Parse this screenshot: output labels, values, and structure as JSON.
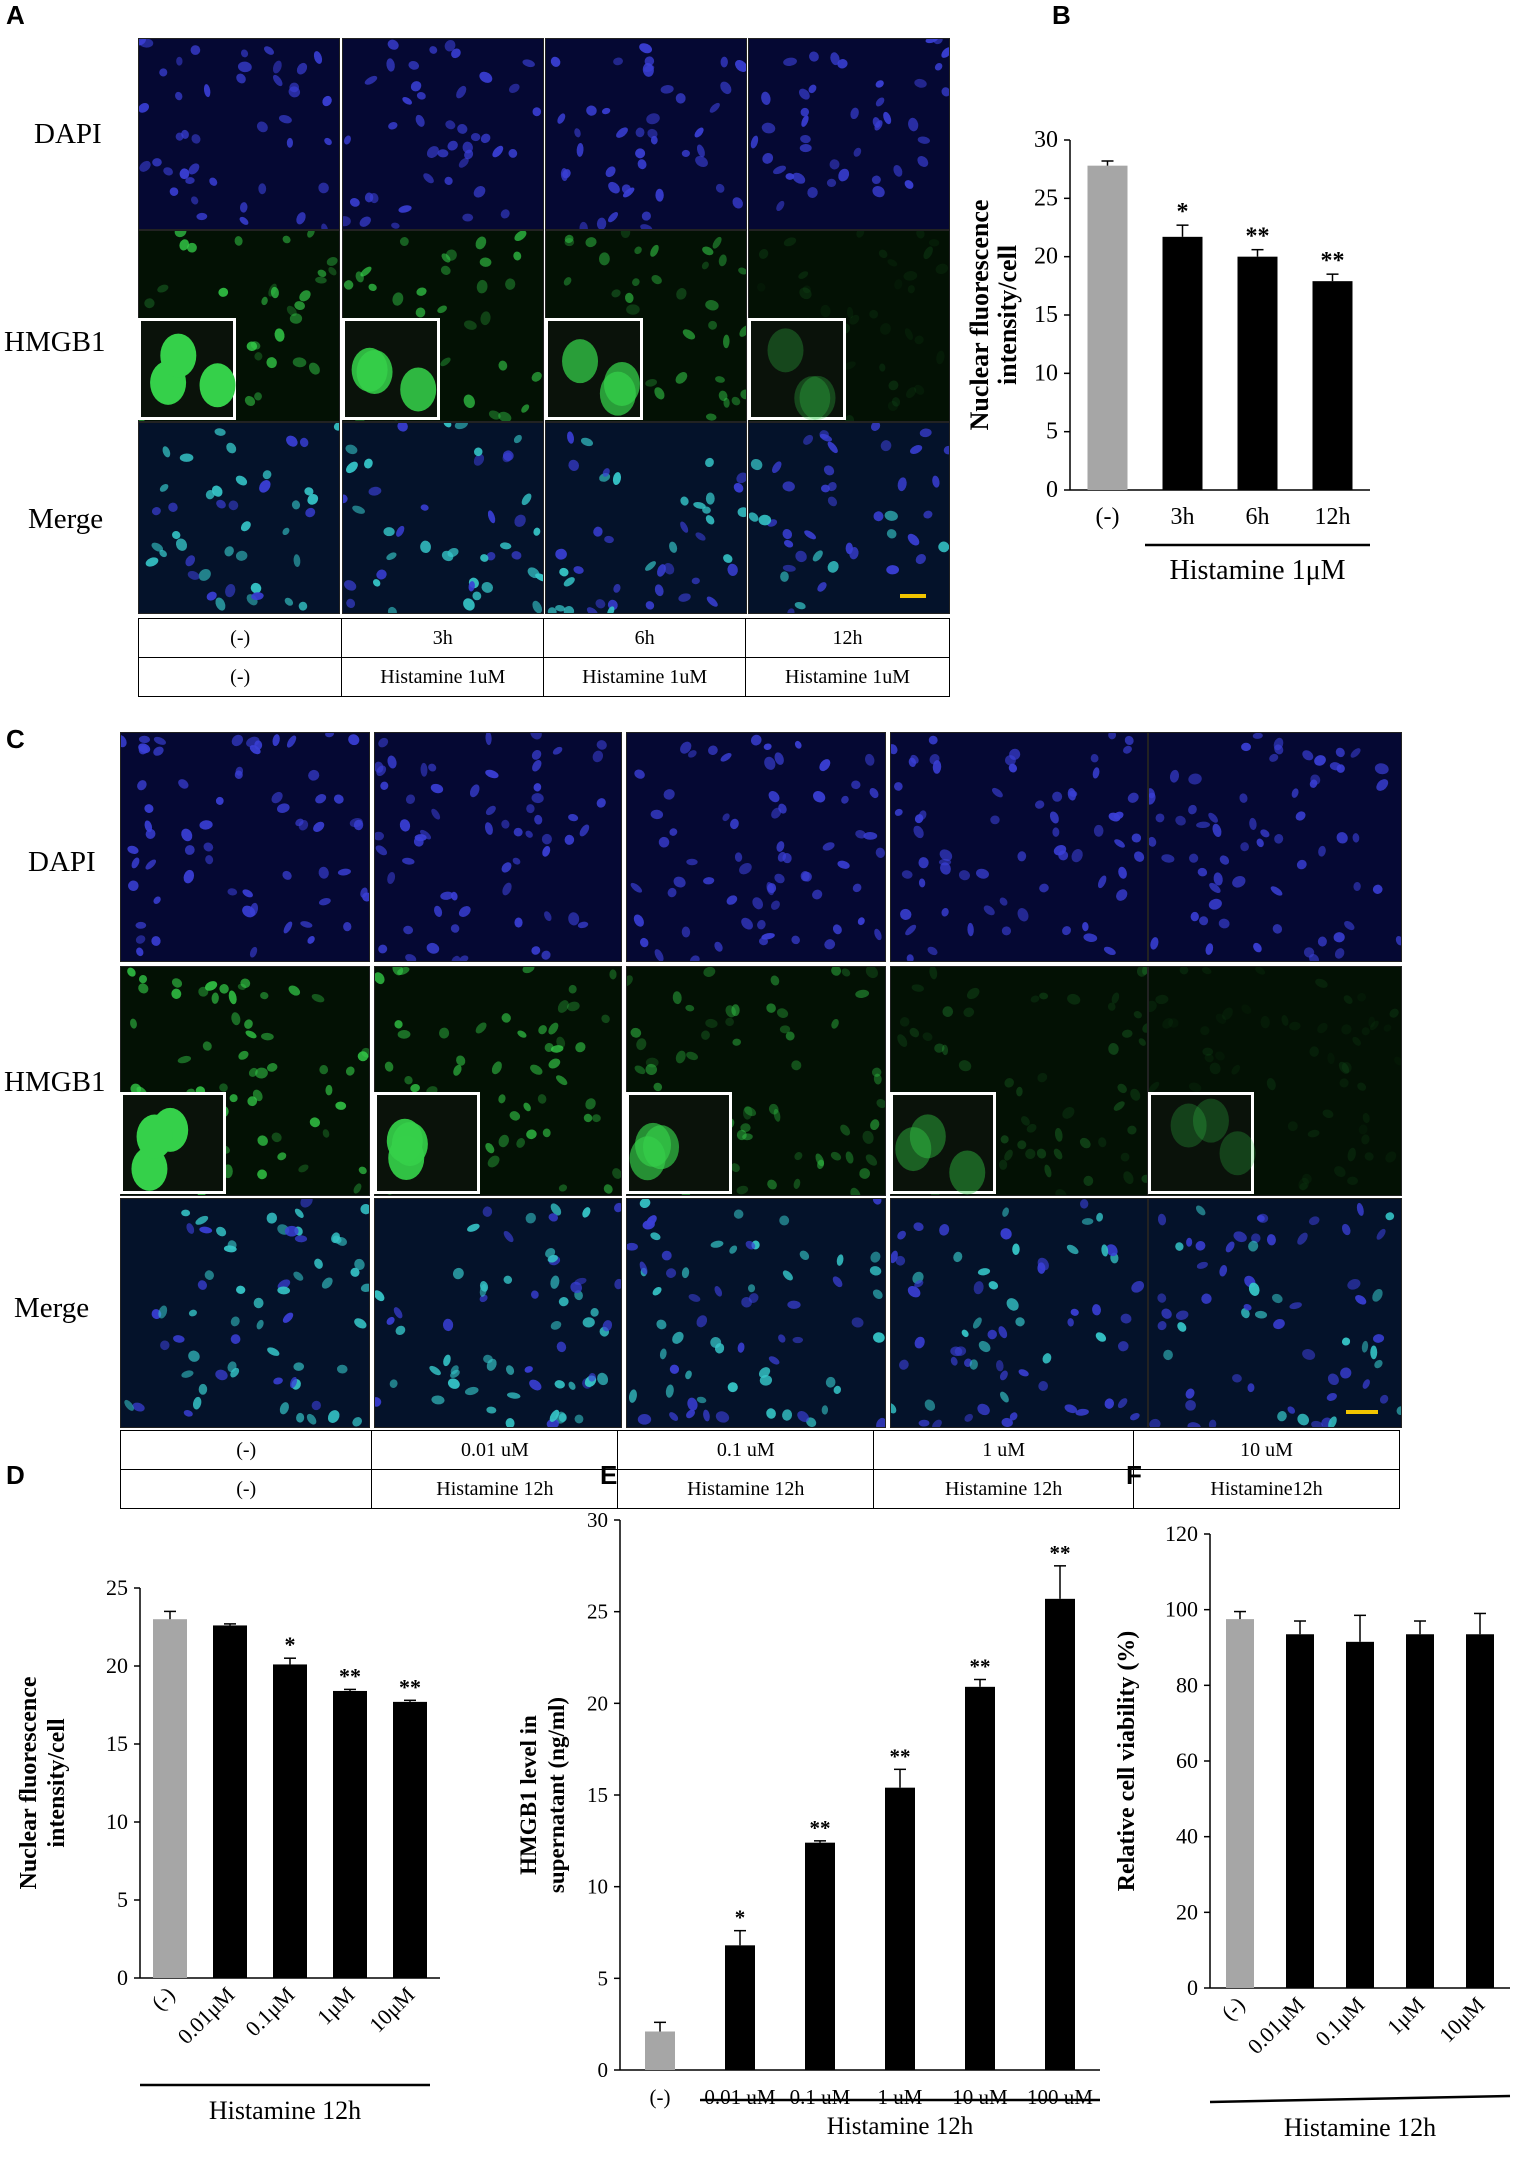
{
  "panels": {
    "A": {
      "letter": "A",
      "rows": [
        "DAPI",
        "HMGB1",
        "Merge"
      ],
      "conditions_row1": [
        "(-)",
        "3h",
        "6h",
        "12h"
      ],
      "conditions_row2": [
        "(-)",
        "Histamine 1uM",
        "Histamine 1uM",
        "Histamine 1uM"
      ],
      "inset_intensity": [
        1.0,
        0.85,
        0.7,
        0.15
      ]
    },
    "B": {
      "letter": "B"
    },
    "C": {
      "letter": "C",
      "rows": [
        "DAPI",
        "HMGB1",
        "Merge"
      ],
      "conditions_row1": [
        "(-)",
        "0.01 uM",
        "0.1 uM",
        "1 uM",
        "10 uM"
      ],
      "conditions_row2": [
        "(-)",
        "Histamine 12h",
        "Histamine 12h",
        "Histamine 12h",
        "Histamine12h"
      ],
      "inset_intensity": [
        1.0,
        0.9,
        0.6,
        0.3,
        0.12
      ]
    },
    "D": {
      "letter": "D"
    },
    "E": {
      "letter": "E"
    },
    "F": {
      "letter": "F"
    }
  },
  "colors": {
    "control_bar": "#a6a6a6",
    "treated_bar": "#000000",
    "dapi": "#3a3fd6",
    "hmgb1": "#35d04a",
    "merge": "#36c7c9",
    "scale_bar": "#f2c500"
  },
  "chart_data": [
    {
      "id": "B",
      "type": "bar",
      "categories": [
        "(-)",
        "3h",
        "6h",
        "12h"
      ],
      "values": [
        27.8,
        21.7,
        20.0,
        17.9
      ],
      "errors": [
        0.4,
        1.0,
        0.6,
        0.6
      ],
      "significance": [
        "",
        "*",
        "**",
        "**"
      ],
      "ylabel": "Nuclear fluorescence intensity/cell",
      "xlabel": "Histamine 1μM",
      "ylim": [
        0,
        30
      ],
      "yticks": [
        0,
        5,
        10,
        15,
        20,
        25,
        30
      ]
    },
    {
      "id": "D",
      "type": "bar",
      "categories": [
        "(-)",
        "0.01μM",
        "0.1μM",
        "1μM",
        "10μM"
      ],
      "values": [
        23.0,
        22.6,
        20.1,
        18.4,
        17.7
      ],
      "errors": [
        0.5,
        0.1,
        0.4,
        0.1,
        0.1
      ],
      "significance": [
        "",
        "",
        "*",
        "**",
        "**"
      ],
      "ylabel": "Nuclear fluorescence intensity/cell",
      "xlabel": "Histamine  12h",
      "ylim": [
        0,
        25
      ],
      "yticks": [
        0,
        5,
        10,
        15,
        20,
        25
      ]
    },
    {
      "id": "E",
      "type": "bar",
      "categories": [
        "(-)",
        "0.01 uM",
        "0.1 uM",
        "1 uM",
        "10 uM",
        "100 uM"
      ],
      "values": [
        2.1,
        6.8,
        12.4,
        15.4,
        20.9,
        25.7
      ],
      "errors": [
        0.5,
        0.8,
        0.1,
        1.0,
        0.4,
        1.8
      ],
      "significance": [
        "",
        "*",
        "**",
        "**",
        "**",
        "**"
      ],
      "ylabel": "HMGB1 level in supernatant (ng/ml)",
      "xlabel": "Histamine 12h",
      "ylim": [
        0,
        30
      ],
      "yticks": [
        0,
        5,
        10,
        15,
        20,
        25,
        30
      ]
    },
    {
      "id": "F",
      "type": "bar",
      "categories": [
        "(-)",
        "0.01μM",
        "0.1μM",
        "1μM",
        "10μM"
      ],
      "values": [
        97.5,
        93.5,
        91.5,
        93.5,
        93.5
      ],
      "errors": [
        2.0,
        3.5,
        7.0,
        3.5,
        5.5
      ],
      "significance": [
        "",
        "",
        "",
        "",
        ""
      ],
      "ylabel": "Relative cell viability (%)",
      "xlabel": "Histamine 12h",
      "ylim": [
        0,
        120
      ],
      "yticks": [
        0,
        20,
        40,
        60,
        80,
        100,
        120
      ]
    }
  ]
}
